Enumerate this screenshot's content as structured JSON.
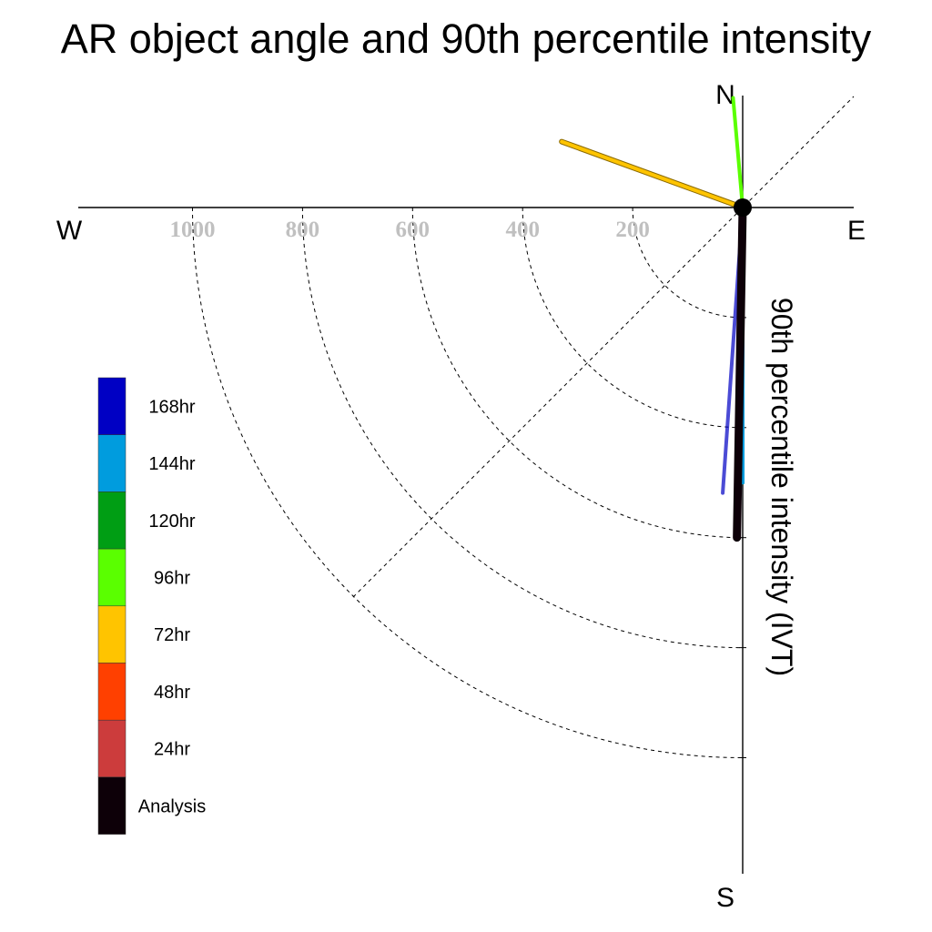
{
  "chart_data": {
    "type": "polar-line",
    "title": "AR object angle and 90th percentile intensity",
    "ylabel": "90th percentile intensity (IVT)",
    "compass": {
      "north": "N",
      "south": "S",
      "east": "E",
      "west": "W"
    },
    "radial_range": [
      0,
      1200
    ],
    "rings": [
      200,
      400,
      600,
      800,
      1000
    ],
    "ring_labels": [
      "1000",
      "800",
      "600",
      "400",
      "200"
    ],
    "ring_label_values": [
      1000,
      800,
      600,
      400,
      200
    ],
    "series": [
      {
        "name": "Analysis",
        "color": "#0d0008",
        "angle": 181,
        "value": 600,
        "width": 9
      },
      {
        "name": "24hr",
        "color": "#cc3c3c",
        "angle": 181,
        "value": 570,
        "width": 4
      },
      {
        "name": "48hr",
        "color": "#ff4000",
        "angle": 181,
        "value": 575,
        "width": 4
      },
      {
        "name": "72hr",
        "color": "#ffc400",
        "angle": 290,
        "value": 350,
        "width": 6
      },
      {
        "name": "96hr",
        "color": "#5aff00",
        "angle": 355,
        "value": 200,
        "width": 4
      },
      {
        "name": "120hr",
        "color": "#009e14",
        "angle": 180,
        "value": 500,
        "width": 4
      },
      {
        "name": "144hr",
        "color": "#009cde",
        "angle": 180,
        "value": 500,
        "width": 4
      },
      {
        "name": "168hr",
        "color": "#0000c4",
        "angle": 184,
        "value": 520,
        "width": 4
      }
    ],
    "legend": {
      "placement": "left",
      "entries": [
        "168hr",
        "144hr",
        "120hr",
        "96hr",
        "72hr",
        "48hr",
        "24hr",
        "Analysis"
      ],
      "colors": [
        "#0000c4",
        "#009cde",
        "#009e14",
        "#5aff00",
        "#ffc400",
        "#ff4000",
        "#cc3c3c",
        "#0d0008"
      ]
    }
  }
}
